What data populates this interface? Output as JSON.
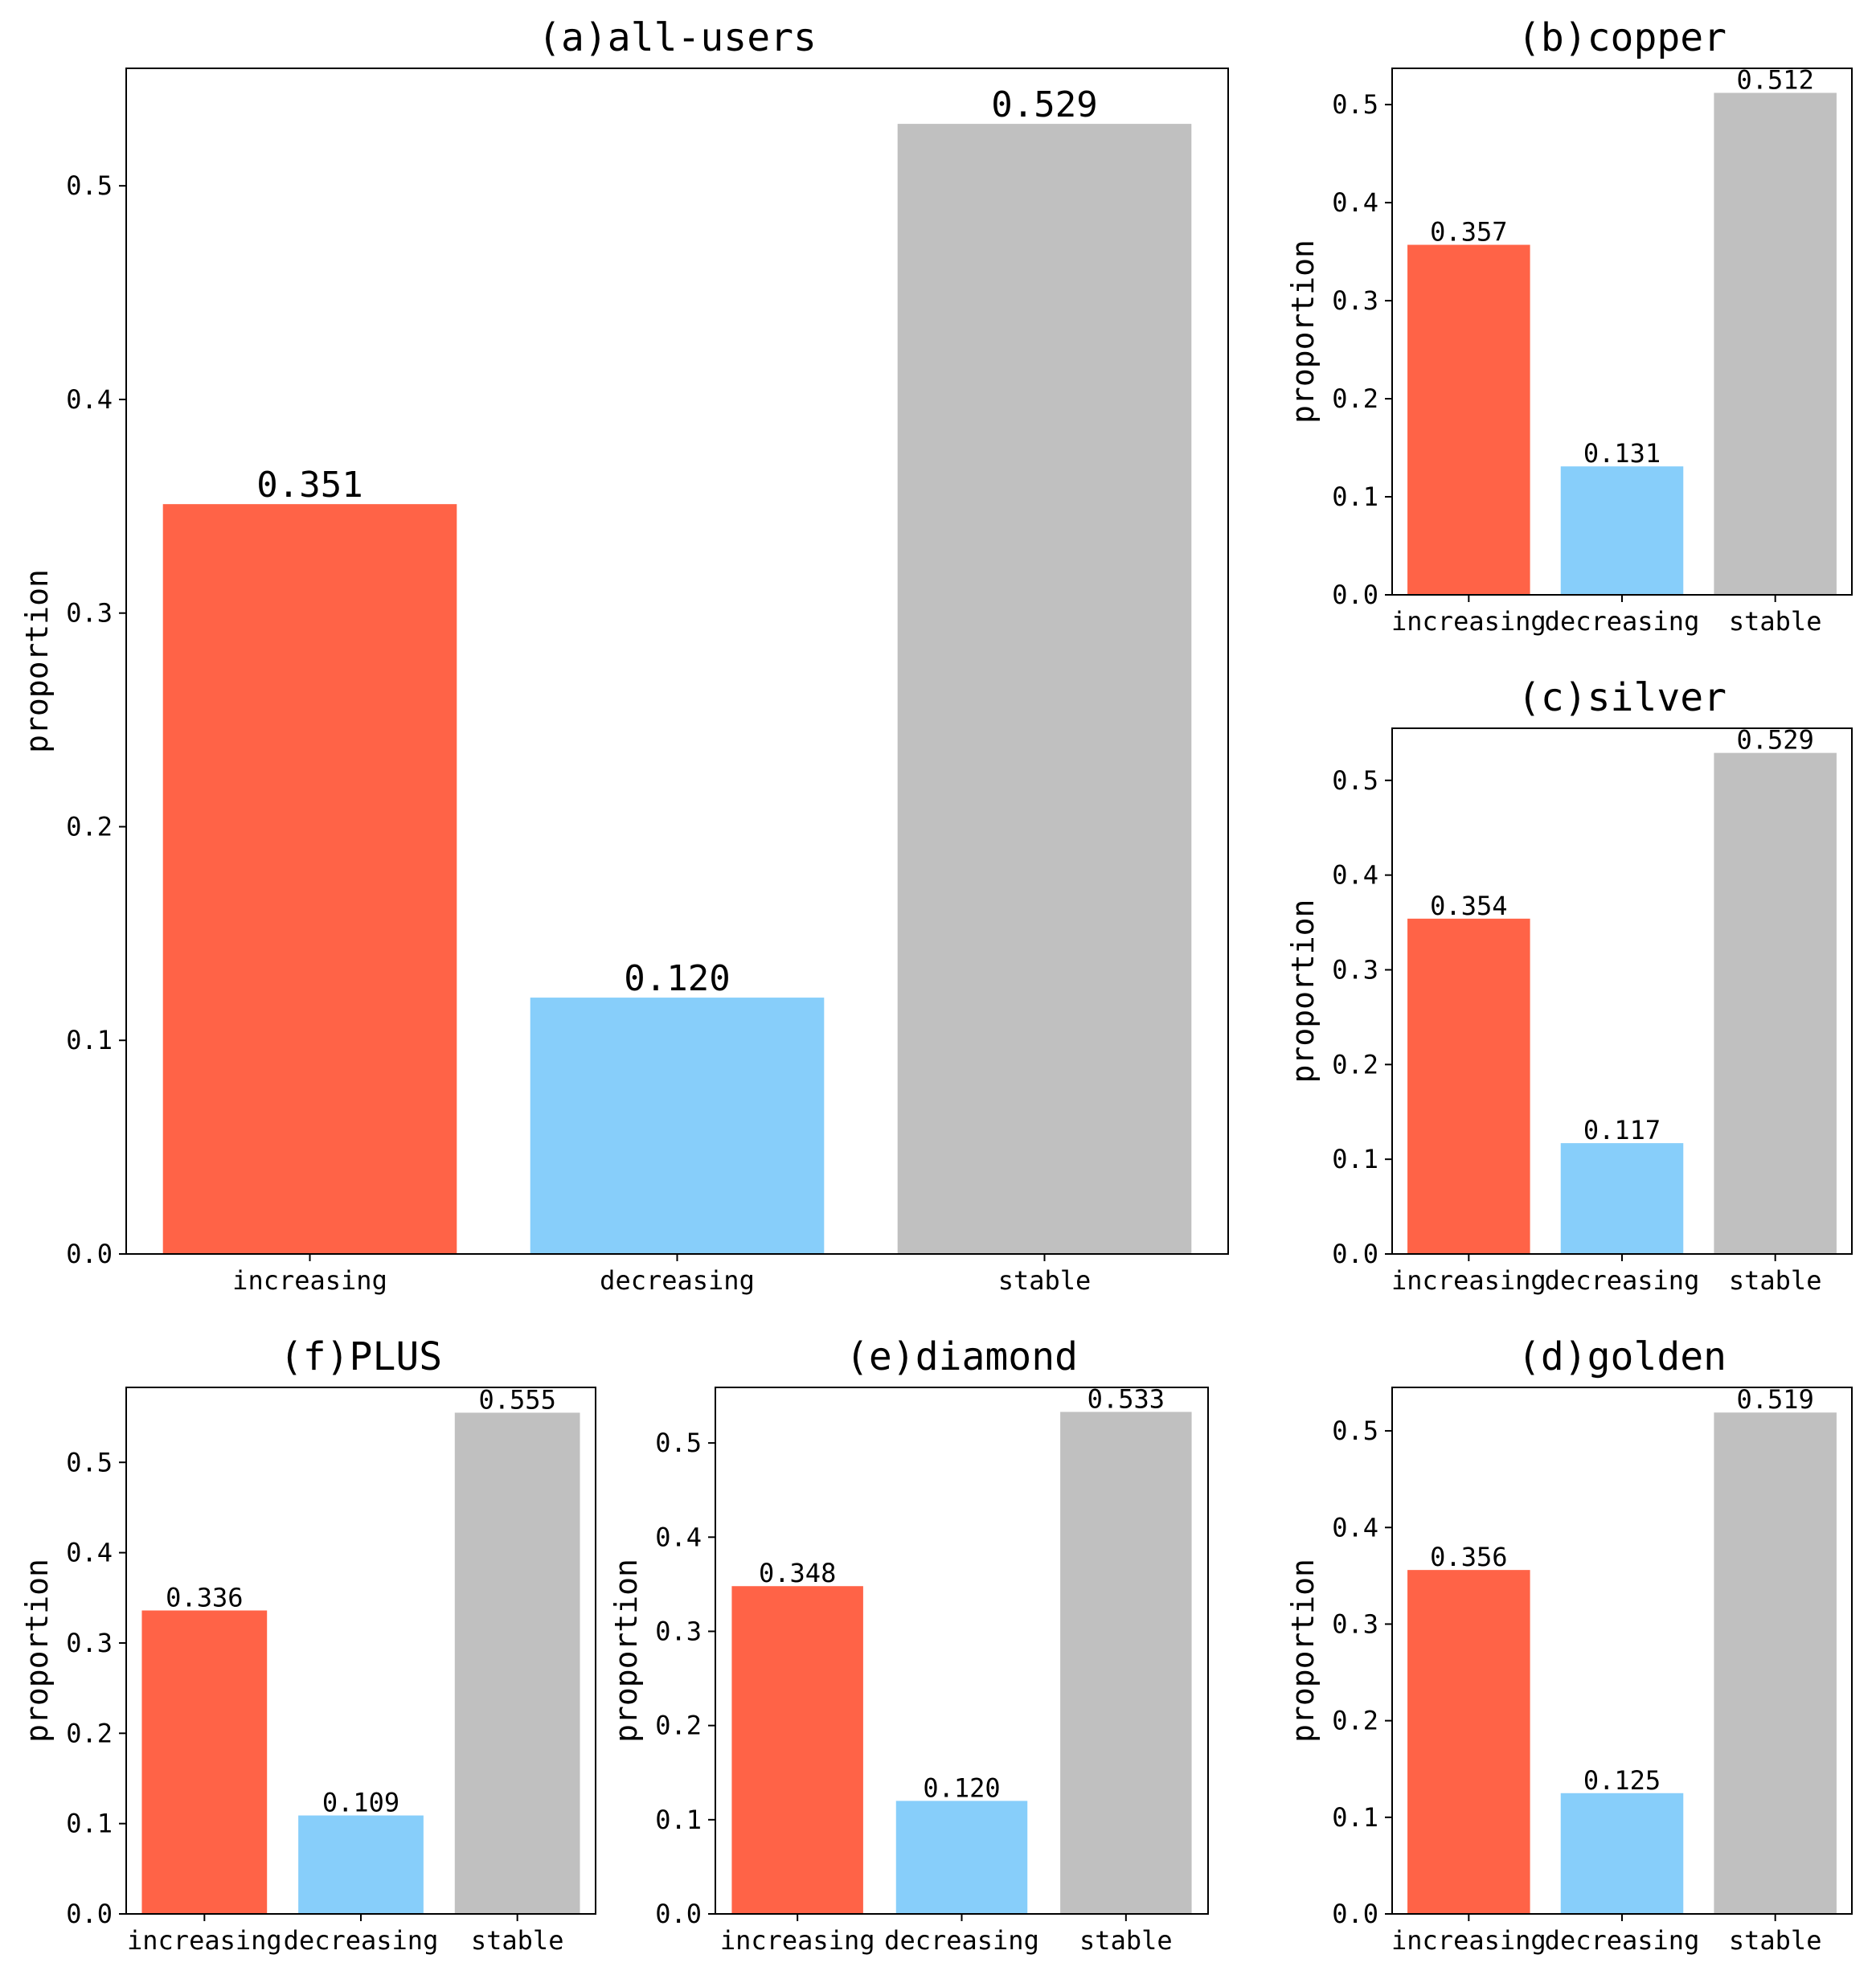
{
  "colors": {
    "increasing": "#ff6347",
    "decreasing": "#87cefa",
    "stable": "#c0c0c0"
  },
  "chart_data": [
    {
      "type": "bar",
      "title": "(a)all-users",
      "xlabel": "",
      "ylabel": "proportion",
      "categories": [
        "increasing",
        "decreasing",
        "stable"
      ],
      "values": [
        0.351,
        0.12,
        0.529
      ],
      "value_labels": [
        "0.351",
        "0.120",
        "0.529"
      ],
      "ylim": [
        0,
        0.555
      ],
      "yticks": [
        0.0,
        0.1,
        0.2,
        0.3,
        0.4,
        0.5
      ],
      "ytick_labels": [
        "0.0",
        "0.1",
        "0.2",
        "0.3",
        "0.4",
        "0.5"
      ],
      "grid": false
    },
    {
      "type": "bar",
      "title": "(b)copper",
      "xlabel": "",
      "ylabel": "proportion",
      "categories": [
        "increasing",
        "decreasing",
        "stable"
      ],
      "values": [
        0.357,
        0.131,
        0.512
      ],
      "value_labels": [
        "0.357",
        "0.131",
        "0.512"
      ],
      "ylim": [
        0,
        0.537
      ],
      "yticks": [
        0.0,
        0.1,
        0.2,
        0.3,
        0.4,
        0.5
      ],
      "ytick_labels": [
        "0.0",
        "0.1",
        "0.2",
        "0.3",
        "0.4",
        "0.5"
      ],
      "grid": false
    },
    {
      "type": "bar",
      "title": "(c)silver",
      "xlabel": "",
      "ylabel": "proportion",
      "categories": [
        "increasing",
        "decreasing",
        "stable"
      ],
      "values": [
        0.354,
        0.117,
        0.529
      ],
      "value_labels": [
        "0.354",
        "0.117",
        "0.529"
      ],
      "ylim": [
        0,
        0.555
      ],
      "yticks": [
        0.0,
        0.1,
        0.2,
        0.3,
        0.4,
        0.5
      ],
      "ytick_labels": [
        "0.0",
        "0.1",
        "0.2",
        "0.3",
        "0.4",
        "0.5"
      ],
      "grid": false
    },
    {
      "type": "bar",
      "title": "(d)golden",
      "xlabel": "",
      "ylabel": "proportion",
      "categories": [
        "increasing",
        "decreasing",
        "stable"
      ],
      "values": [
        0.356,
        0.125,
        0.519
      ],
      "value_labels": [
        "0.356",
        "0.125",
        "0.519"
      ],
      "ylim": [
        0,
        0.545
      ],
      "yticks": [
        0.0,
        0.1,
        0.2,
        0.3,
        0.4,
        0.5
      ],
      "ytick_labels": [
        "0.0",
        "0.1",
        "0.2",
        "0.3",
        "0.4",
        "0.5"
      ],
      "grid": false
    },
    {
      "type": "bar",
      "title": "(e)diamond",
      "xlabel": "",
      "ylabel": "proportion",
      "categories": [
        "increasing",
        "decreasing",
        "stable"
      ],
      "values": [
        0.348,
        0.12,
        0.533
      ],
      "value_labels": [
        "0.348",
        "0.120",
        "0.533"
      ],
      "ylim": [
        0,
        0.559
      ],
      "yticks": [
        0.0,
        0.1,
        0.2,
        0.3,
        0.4,
        0.5
      ],
      "ytick_labels": [
        "0.0",
        "0.1",
        "0.2",
        "0.3",
        "0.4",
        "0.5"
      ],
      "grid": false
    },
    {
      "type": "bar",
      "title": "(f)PLUS",
      "xlabel": "",
      "ylabel": "proportion",
      "categories": [
        "increasing",
        "decreasing",
        "stable"
      ],
      "values": [
        0.336,
        0.109,
        0.555
      ],
      "value_labels": [
        "0.336",
        "0.109",
        "0.555"
      ],
      "ylim": [
        0,
        0.583
      ],
      "yticks": [
        0.0,
        0.1,
        0.2,
        0.3,
        0.4,
        0.5
      ],
      "ytick_labels": [
        "0.0",
        "0.1",
        "0.2",
        "0.3",
        "0.4",
        "0.5"
      ],
      "grid": false
    }
  ]
}
